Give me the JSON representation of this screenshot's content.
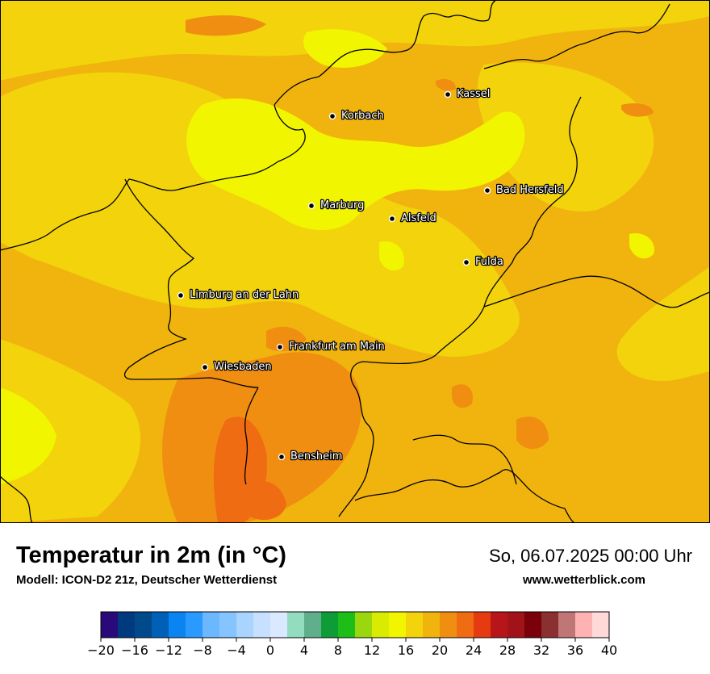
{
  "map": {
    "region": "Hessen",
    "cities": [
      {
        "name": "Kassel"
      },
      {
        "name": "Korbach"
      },
      {
        "name": "Bad Hersfeld"
      },
      {
        "name": "Marburg"
      },
      {
        "name": "Alsfeld"
      },
      {
        "name": "Fulda"
      },
      {
        "name": "Limburg an der Lahn"
      },
      {
        "name": "Frankfurt am Main"
      },
      {
        "name": "Wiesbaden"
      },
      {
        "name": "Bensheim"
      }
    ]
  },
  "footer": {
    "title": "Temperatur in 2m (in °C)",
    "subtitle": "Modell: ICON-D2 21z, Deutscher Wetterdienst",
    "datetime": "So, 06.07.2025 00:00 Uhr",
    "website": "www.wetterblick.com"
  },
  "colorbar": {
    "ticks": [
      "−20",
      "−16",
      "−12",
      "−8",
      "−4",
      "0",
      "4",
      "8",
      "12",
      "16",
      "20",
      "24",
      "28",
      "32",
      "36",
      "40"
    ],
    "colors": [
      "#2a0a7a",
      "#003a7e",
      "#004a8c",
      "#0060b8",
      "#0a84f0",
      "#2a9aff",
      "#6bb8ff",
      "#85c4ff",
      "#a8d4ff",
      "#c8e0ff",
      "#dae9ff",
      "#92dcc0",
      "#5fae8c",
      "#0e9c36",
      "#1dbe17",
      "#9bd70e",
      "#d8eb00",
      "#f2f500",
      "#f2d30c",
      "#f1b40e",
      "#f08e12",
      "#f06c12",
      "#e63a10",
      "#b8151a",
      "#a11318",
      "#7a0009",
      "#8a3030",
      "#c07576",
      "#ffb2b2",
      "#ffd8d8"
    ]
  }
}
